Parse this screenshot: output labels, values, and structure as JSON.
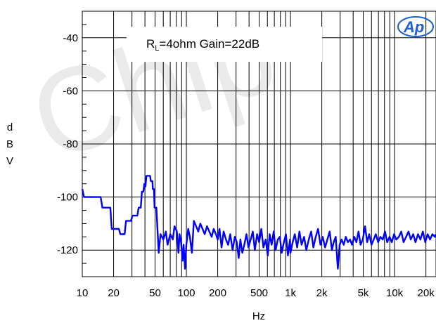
{
  "chart_data": {
    "type": "line",
    "title": "",
    "annotation": {
      "prefix": "R",
      "subscript": "L",
      "suffix": "=4ohm Gain=22dB"
    },
    "xlabel": "Hz",
    "ylabel_letters": [
      "d",
      "B",
      "V"
    ],
    "x_scale": "log",
    "xlim": [
      10,
      25000
    ],
    "ylim": [
      -130,
      -30
    ],
    "x_ticks": [
      {
        "value": 10,
        "label": "10"
      },
      {
        "value": 20,
        "label": "20"
      },
      {
        "value": 50,
        "label": "50"
      },
      {
        "value": 100,
        "label": "100"
      },
      {
        "value": 200,
        "label": "200"
      },
      {
        "value": 500,
        "label": "500"
      },
      {
        "value": 1000,
        "label": "1k"
      },
      {
        "value": 2000,
        "label": "2k"
      },
      {
        "value": 5000,
        "label": "5k"
      },
      {
        "value": 10000,
        "label": "10k"
      },
      {
        "value": 20000,
        "label": "20k"
      }
    ],
    "y_ticks": [
      {
        "value": -40,
        "label": "-40"
      },
      {
        "value": -60,
        "label": "-60"
      },
      {
        "value": -80,
        "label": "-80"
      },
      {
        "value": -100,
        "label": "-100"
      },
      {
        "value": -120,
        "label": "-120"
      }
    ],
    "grid": true,
    "series": [
      {
        "color": "#0000ff",
        "points": [
          [
            10,
            -97
          ],
          [
            10.4,
            -100
          ],
          [
            15,
            -100
          ],
          [
            15.6,
            -104
          ],
          [
            18.6,
            -104
          ],
          [
            19.2,
            -112
          ],
          [
            22.5,
            -112
          ],
          [
            23.2,
            -114
          ],
          [
            25.5,
            -114
          ],
          [
            26.3,
            -109
          ],
          [
            29.4,
            -109
          ],
          [
            30.3,
            -107
          ],
          [
            33.8,
            -107
          ],
          [
            34.8,
            -104
          ],
          [
            36.5,
            -104
          ],
          [
            37.4,
            -98
          ],
          [
            38.6,
            -98
          ],
          [
            39.5,
            -95
          ],
          [
            40.5,
            -96
          ],
          [
            41.3,
            -92
          ],
          [
            44.8,
            -92
          ],
          [
            45.5,
            -94
          ],
          [
            47.2,
            -94
          ],
          [
            47.6,
            -97
          ],
          [
            48.8,
            -97
          ],
          [
            49.5,
            -104
          ],
          [
            51.5,
            -104
          ],
          [
            52.6,
            -111
          ],
          [
            54.2,
            -121
          ],
          [
            56.5,
            -114
          ],
          [
            60,
            -116
          ],
          [
            63.5,
            -113
          ],
          [
            66,
            -118
          ],
          [
            70,
            -114
          ],
          [
            74,
            -116
          ],
          [
            77,
            -111
          ],
          [
            81,
            -113
          ],
          [
            84,
            -121
          ],
          [
            86,
            -114
          ],
          [
            89,
            -117
          ],
          [
            92,
            -124
          ],
          [
            94,
            -118
          ],
          [
            97,
            -127
          ],
          [
            100,
            -118
          ],
          [
            104,
            -112
          ],
          [
            108,
            -115
          ],
          [
            113,
            -121
          ],
          [
            118,
            -109
          ],
          [
            124,
            -111
          ],
          [
            130,
            -113
          ],
          [
            136,
            -110
          ],
          [
            143,
            -112
          ],
          [
            150,
            -114
          ],
          [
            158,
            -111
          ],
          [
            166,
            -113
          ],
          [
            175,
            -115
          ],
          [
            183,
            -112
          ],
          [
            192,
            -114
          ],
          [
            200,
            -116
          ],
          [
            208,
            -112
          ],
          [
            218,
            -119
          ],
          [
            228,
            -113
          ],
          [
            240,
            -116
          ],
          [
            252,
            -118
          ],
          [
            264,
            -114
          ],
          [
            278,
            -120
          ],
          [
            292,
            -115
          ],
          [
            305,
            -117
          ],
          [
            318,
            -123
          ],
          [
            330,
            -116
          ],
          [
            345,
            -121
          ],
          [
            360,
            -118
          ],
          [
            378,
            -114
          ],
          [
            395,
            -119
          ],
          [
            415,
            -116
          ],
          [
            435,
            -113
          ],
          [
            455,
            -120
          ],
          [
            478,
            -114
          ],
          [
            500,
            -117
          ],
          [
            525,
            -112
          ],
          [
            550,
            -119
          ],
          [
            578,
            -116
          ],
          [
            605,
            -122
          ],
          [
            630,
            -114
          ],
          [
            660,
            -118
          ],
          [
            690,
            -113
          ],
          [
            720,
            -120
          ],
          [
            755,
            -116
          ],
          [
            790,
            -115
          ],
          [
            825,
            -121
          ],
          [
            865,
            -117
          ],
          [
            905,
            -114
          ],
          [
            945,
            -122
          ],
          [
            990,
            -116
          ],
          [
            1000,
            -121
          ],
          [
            1050,
            -117
          ],
          [
            1100,
            -114
          ],
          [
            1160,
            -119
          ],
          [
            1220,
            -113
          ],
          [
            1280,
            -118
          ],
          [
            1350,
            -115
          ],
          [
            1420,
            -120
          ],
          [
            1500,
            -116
          ],
          [
            1580,
            -113
          ],
          [
            1660,
            -119
          ],
          [
            1750,
            -115
          ],
          [
            1840,
            -112
          ],
          [
            1940,
            -118
          ],
          [
            2040,
            -115
          ],
          [
            2150,
            -119
          ],
          [
            2260,
            -116
          ],
          [
            2380,
            -113
          ],
          [
            2500,
            -120
          ],
          [
            2600,
            -117
          ],
          [
            2720,
            -115
          ],
          [
            2850,
            -127
          ],
          [
            2970,
            -118
          ],
          [
            3100,
            -116
          ],
          [
            3250,
            -118
          ],
          [
            3400,
            -115
          ],
          [
            3560,
            -117
          ],
          [
            3730,
            -116
          ],
          [
            3900,
            -118
          ],
          [
            4100,
            -115
          ],
          [
            4300,
            -117
          ],
          [
            4500,
            -113
          ],
          [
            4720,
            -118
          ],
          [
            4950,
            -116
          ],
          [
            5200,
            -111
          ],
          [
            5450,
            -117
          ],
          [
            5700,
            -114
          ],
          [
            6000,
            -118
          ],
          [
            6300,
            -116
          ],
          [
            6600,
            -114
          ],
          [
            6950,
            -117
          ],
          [
            7300,
            -115
          ],
          [
            7700,
            -116
          ],
          [
            8100,
            -113
          ],
          [
            8500,
            -117
          ],
          [
            8950,
            -115
          ],
          [
            9400,
            -117
          ],
          [
            9900,
            -114
          ],
          [
            10400,
            -116
          ],
          [
            11000,
            -115
          ],
          [
            11600,
            -113
          ],
          [
            12200,
            -117
          ],
          [
            12900,
            -115
          ],
          [
            13600,
            -113
          ],
          [
            14300,
            -116
          ],
          [
            15100,
            -114
          ],
          [
            15900,
            -117
          ],
          [
            16800,
            -114
          ],
          [
            17700,
            -116
          ],
          [
            18700,
            -113
          ],
          [
            19700,
            -117
          ],
          [
            20800,
            -114
          ],
          [
            21900,
            -116
          ],
          [
            23100,
            -114
          ],
          [
            24400,
            -115
          ],
          [
            25000,
            -114
          ]
        ]
      }
    ]
  },
  "logo": {
    "text": "Ap"
  },
  "watermark": {
    "text": "Chip"
  }
}
